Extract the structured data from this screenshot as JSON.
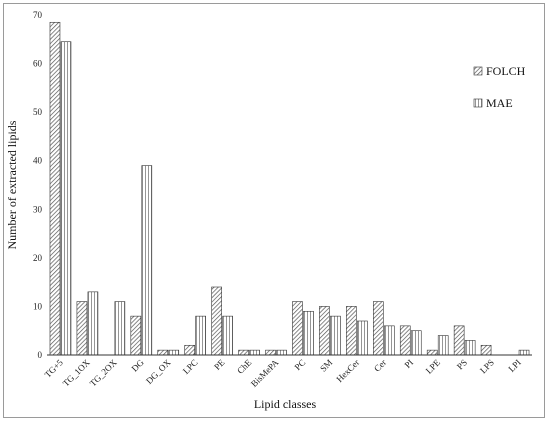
{
  "chart_data": {
    "type": "bar",
    "title": "",
    "xlabel": "Lipid classes",
    "ylabel": "Number of extracted lipids",
    "ylim": [
      0,
      70
    ],
    "y_ticks": [
      0,
      10,
      20,
      30,
      40,
      50,
      60,
      70
    ],
    "grid": false,
    "legend_position": "right",
    "categories": [
      "TG+5",
      "TG_1OX",
      "TG_2OX",
      "DG",
      "DG_OX",
      "LPC",
      "PE",
      "ChE",
      "BisMePA",
      "PC",
      "SM",
      "HexCer",
      "Cer",
      "PI",
      "LPE",
      "PS",
      "LPS",
      "LPI"
    ],
    "series": [
      {
        "name": "FOLCH",
        "pattern": "diagonal-hatch",
        "values": [
          68.5,
          11,
          0,
          8,
          1,
          2,
          14,
          1,
          1,
          11,
          10,
          10,
          11,
          6,
          1,
          6,
          2,
          0
        ]
      },
      {
        "name": "MAE",
        "pattern": "vertical-stripes",
        "values": [
          64.5,
          13,
          11,
          39,
          1,
          8,
          8,
          1,
          1,
          9,
          8,
          7,
          6,
          5,
          4,
          3,
          0,
          1
        ]
      }
    ]
  },
  "colors": {
    "axis": "#333333",
    "bar_stroke": "#333333",
    "hatch": "#555555",
    "background": "#ffffff"
  }
}
